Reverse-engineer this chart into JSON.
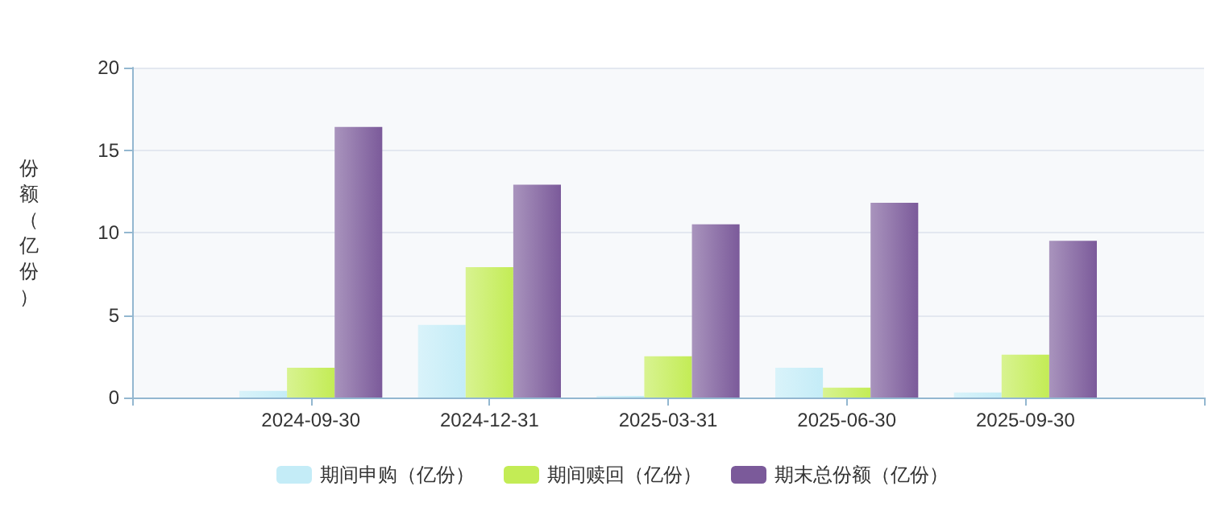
{
  "chart_data": {
    "type": "bar",
    "ylabel": "份额（亿份）",
    "categories": [
      null,
      "2024-09-30",
      "2024-12-31",
      "2025-03-31",
      "2025-06-30",
      "2025-09-30",
      null
    ],
    "series": [
      {
        "name": "期间申购（亿份）",
        "color": "#c4ecf7",
        "values": [
          null,
          0.4,
          4.4,
          0.1,
          1.8,
          0.3,
          null
        ]
      },
      {
        "name": "期间赎回（亿份）",
        "color": "#c3ec55",
        "values": [
          null,
          1.8,
          7.9,
          2.5,
          0.6,
          2.6,
          null
        ]
      },
      {
        "name": "期末总份额（亿份）",
        "color": "#7b5a9a",
        "values": [
          null,
          16.4,
          12.9,
          10.5,
          11.8,
          9.5,
          null
        ]
      }
    ],
    "ylim": [
      0,
      20
    ],
    "yticks": [
      0,
      5,
      10,
      15,
      20
    ],
    "grid": "y",
    "legend": "bottom"
  }
}
